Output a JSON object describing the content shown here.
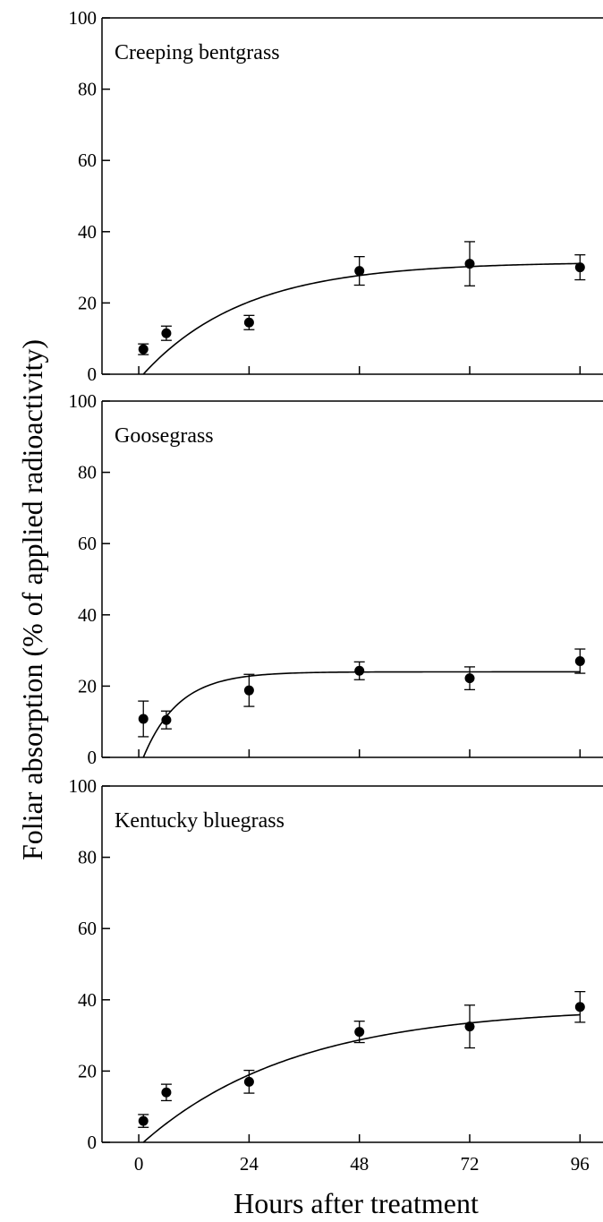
{
  "figure": {
    "ylabel": "Foliar absorption (% of applied radioactivity)",
    "xlabel": "Hours after treatment",
    "x_ticks": [
      0,
      24,
      48,
      72,
      96
    ],
    "y_ticks": [
      0,
      20,
      40,
      60,
      80,
      100
    ]
  },
  "chart_data": [
    {
      "type": "scatter",
      "title": "Creeping bentgrass",
      "xlabel": "Hours after treatment",
      "ylabel": "Foliar absorption (% of applied radioactivity)",
      "xlim": [
        -8,
        101
      ],
      "ylim": [
        0,
        100
      ],
      "grid": false,
      "points": [
        {
          "x": 1,
          "y": 7,
          "err": 1.5
        },
        {
          "x": 6,
          "y": 11.5,
          "err": 2
        },
        {
          "x": 24,
          "y": 14.5,
          "err": 2
        },
        {
          "x": 48,
          "y": 29,
          "err": 4
        },
        {
          "x": 72,
          "y": 31,
          "err": 6.2
        },
        {
          "x": 96,
          "y": 30,
          "err": 3.5
        }
      ],
      "fit_curve": {
        "asymptote": 31.5,
        "rate": 0.045,
        "x0": 1
      }
    },
    {
      "type": "scatter",
      "title": "Goosegrass",
      "xlabel": "Hours after treatment",
      "ylabel": "Foliar absorption (% of applied radioactivity)",
      "xlim": [
        -8,
        101
      ],
      "ylim": [
        0,
        100
      ],
      "grid": false,
      "points": [
        {
          "x": 1,
          "y": 10.8,
          "err": 5
        },
        {
          "x": 6,
          "y": 10.5,
          "err": 2.5
        },
        {
          "x": 24,
          "y": 18.8,
          "err": 4.5
        },
        {
          "x": 48,
          "y": 24.3,
          "err": 2.5
        },
        {
          "x": 72,
          "y": 22.2,
          "err": 3.2
        },
        {
          "x": 96,
          "y": 27,
          "err": 3.4
        }
      ],
      "fit_curve": {
        "asymptote": 24,
        "rate": 0.13,
        "x0": 1
      }
    },
    {
      "type": "scatter",
      "title": "Kentucky bluegrass",
      "xlabel": "Hours after treatment",
      "ylabel": "Foliar absorption (% of applied radioactivity)",
      "xlim": [
        -8,
        101
      ],
      "ylim": [
        0,
        100
      ],
      "grid": false,
      "points": [
        {
          "x": 1,
          "y": 6,
          "err": 1.8
        },
        {
          "x": 6,
          "y": 14,
          "err": 2.3
        },
        {
          "x": 24,
          "y": 17,
          "err": 3.2
        },
        {
          "x": 48,
          "y": 31,
          "err": 3
        },
        {
          "x": 72,
          "y": 32.5,
          "err": 6
        },
        {
          "x": 96,
          "y": 38,
          "err": 4.3
        }
      ],
      "fit_curve": {
        "asymptote": 38,
        "rate": 0.03,
        "x0": 1
      }
    }
  ]
}
